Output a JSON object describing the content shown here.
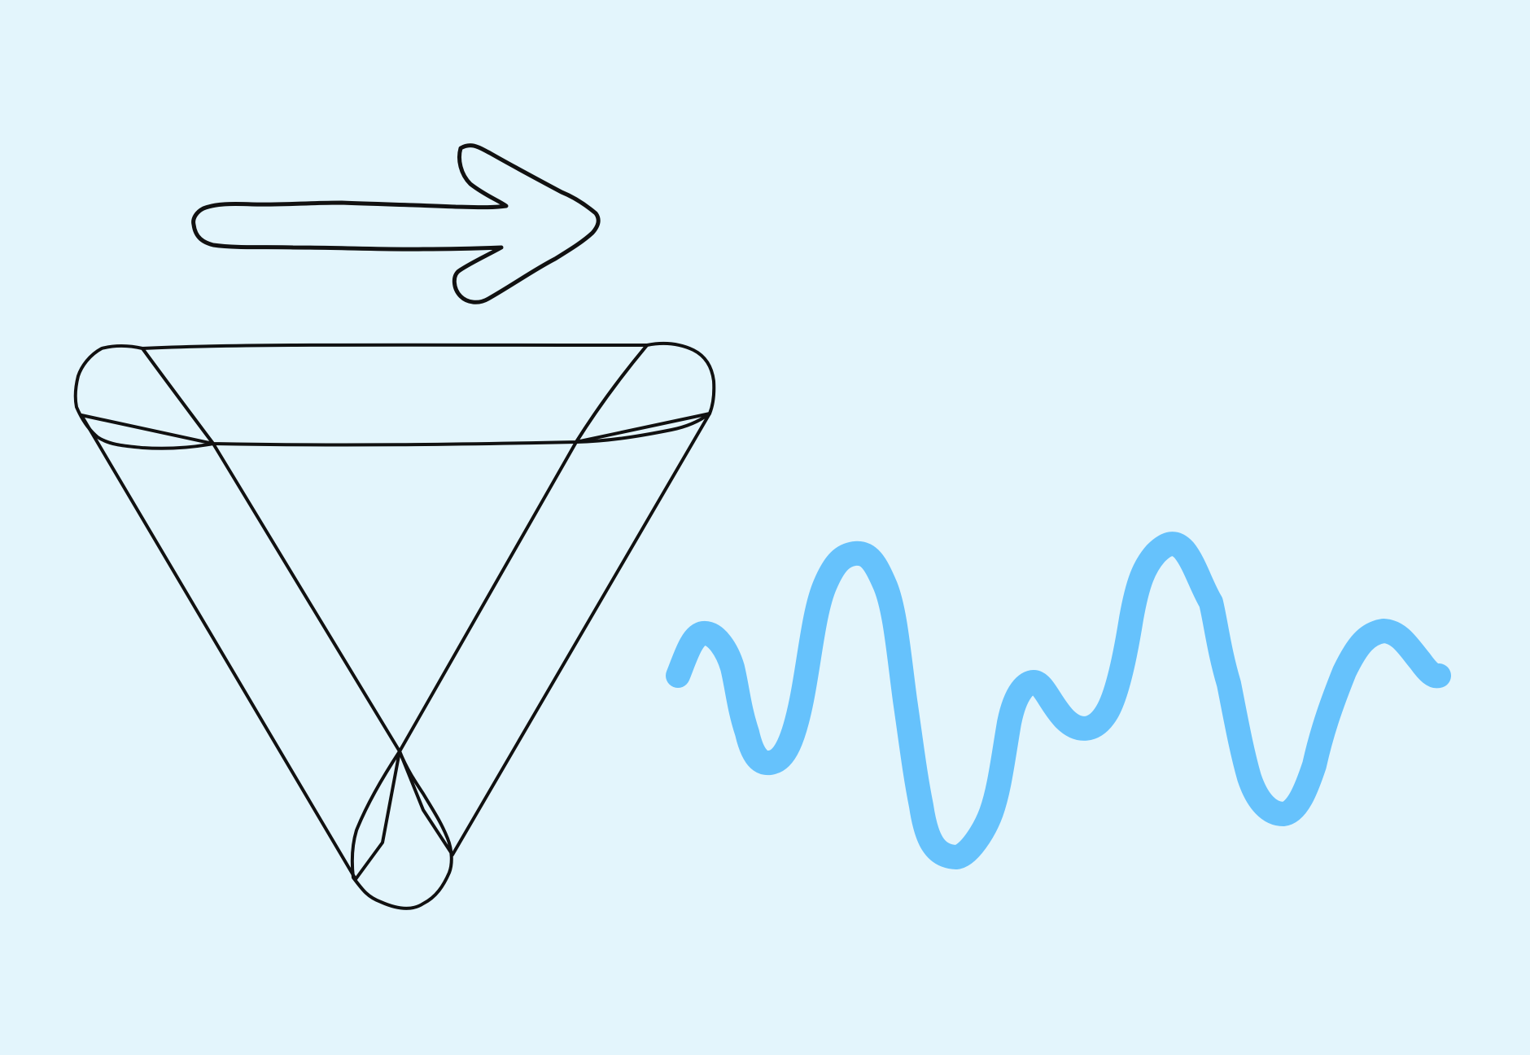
{
  "illustration": {
    "subject": "hand-drawn-doodle",
    "elements": [
      "arrow-icon",
      "triangle-icon",
      "wave-icon"
    ]
  },
  "colors": {
    "background": "#E3F5FC",
    "outline": "#111111",
    "arrow_fill": "#FF87E6",
    "top_band": "#FF87E6",
    "top_left_corner": "#FFB5EE",
    "top_right_corner": "#B0E5FD",
    "left_band": "#FFDF99",
    "bottom_corner": "#FFE9B0",
    "right_band": "#6FCBFD",
    "wave_stroke": "#66C2FC"
  }
}
